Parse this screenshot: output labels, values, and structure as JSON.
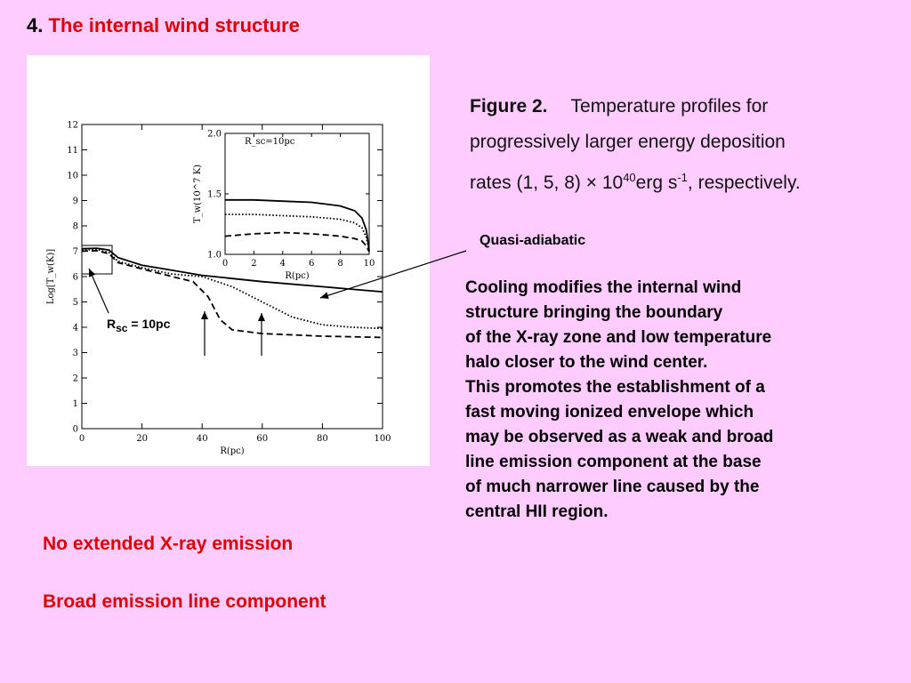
{
  "title": {
    "number": "4.",
    "text": "The internal wind structure"
  },
  "caption": {
    "label": "Figure 2.",
    "line1": "Temperature profiles for",
    "line2": "progressively larger energy deposition",
    "line3_pre": "rates (1, 5, 8) × 10",
    "exp1": "40",
    "line3_mid": "erg  s",
    "exp2": "-1",
    "line3_post": ", respectively."
  },
  "annotations": {
    "quasi": "Quasi-adiabatic",
    "rsc_r": "R",
    "rsc_sub": "sc",
    "rsc_val": "= 10pc"
  },
  "body": [
    "Cooling modifies the internal wind",
    "structure bringing the boundary",
    "of the X-ray zone and low temperature",
    "halo closer to the wind center.",
    "This promotes the establishment of a",
    "fast moving  ionized envelope which",
    "may be observed as a weak and broad",
    "line emission component at the base",
    "of much narrower line caused by the",
    "central HII region."
  ],
  "notes": [
    "No extended X-ray emission",
    "Broad emission line component"
  ],
  "chart_data": [
    {
      "type": "line",
      "xlabel": "R(pc)",
      "ylabel": "Log[T_w(K)]",
      "xlim": [
        0,
        100
      ],
      "ylim": [
        0,
        12
      ],
      "xticks": [
        "0",
        "20",
        "40",
        "60",
        "80",
        "100"
      ],
      "yticks": [
        "0",
        "1",
        "2",
        "3",
        "4",
        "5",
        "6",
        "7",
        "8",
        "9",
        "10",
        "11",
        "12"
      ],
      "series": [
        {
          "style": "solid",
          "x": [
            0,
            5,
            9,
            12,
            20,
            30,
            40,
            60,
            80,
            100
          ],
          "y": [
            7.1,
            7.12,
            7.05,
            6.75,
            6.45,
            6.25,
            6.05,
            5.8,
            5.6,
            5.4
          ]
        },
        {
          "style": "dotted",
          "x": [
            0,
            5,
            9,
            12,
            20,
            30,
            40,
            50,
            60,
            70,
            80,
            90,
            100
          ],
          "y": [
            7.05,
            7.07,
            6.95,
            6.6,
            6.35,
            6.1,
            6.0,
            5.6,
            5.0,
            4.4,
            4.1,
            4.0,
            3.95
          ]
        },
        {
          "style": "dashed",
          "x": [
            0,
            5,
            9,
            12,
            20,
            30,
            37,
            42,
            46,
            50,
            60,
            80,
            100
          ],
          "y": [
            7.0,
            7.02,
            6.9,
            6.55,
            6.3,
            6.0,
            5.8,
            5.2,
            4.3,
            3.9,
            3.75,
            3.65,
            3.6
          ]
        }
      ]
    },
    {
      "type": "line",
      "xlabel": "R(pc)",
      "ylabel": "T_w(10^7 K)",
      "legend_text": "R_sc=10pc",
      "xlim": [
        0,
        10
      ],
      "ylim": [
        1.0,
        2.0
      ],
      "xticks": [
        "0",
        "2",
        "4",
        "6",
        "8",
        "10"
      ],
      "yticks": [
        "1.0",
        "1.5",
        "2.0"
      ],
      "series": [
        {
          "style": "solid",
          "x": [
            0,
            2,
            4,
            6,
            8,
            9,
            9.5,
            9.8,
            10
          ],
          "y": [
            1.45,
            1.45,
            1.44,
            1.43,
            1.4,
            1.36,
            1.3,
            1.2,
            1.03
          ]
        },
        {
          "style": "dotted",
          "x": [
            0,
            2,
            4,
            6,
            8,
            9,
            9.5,
            9.8,
            10
          ],
          "y": [
            1.33,
            1.33,
            1.32,
            1.31,
            1.29,
            1.26,
            1.22,
            1.14,
            1.03
          ]
        },
        {
          "style": "dashed",
          "x": [
            0,
            2,
            4,
            6,
            8,
            9,
            9.5,
            9.8,
            10
          ],
          "y": [
            1.15,
            1.17,
            1.18,
            1.17,
            1.15,
            1.13,
            1.11,
            1.07,
            1.02
          ]
        }
      ]
    }
  ]
}
